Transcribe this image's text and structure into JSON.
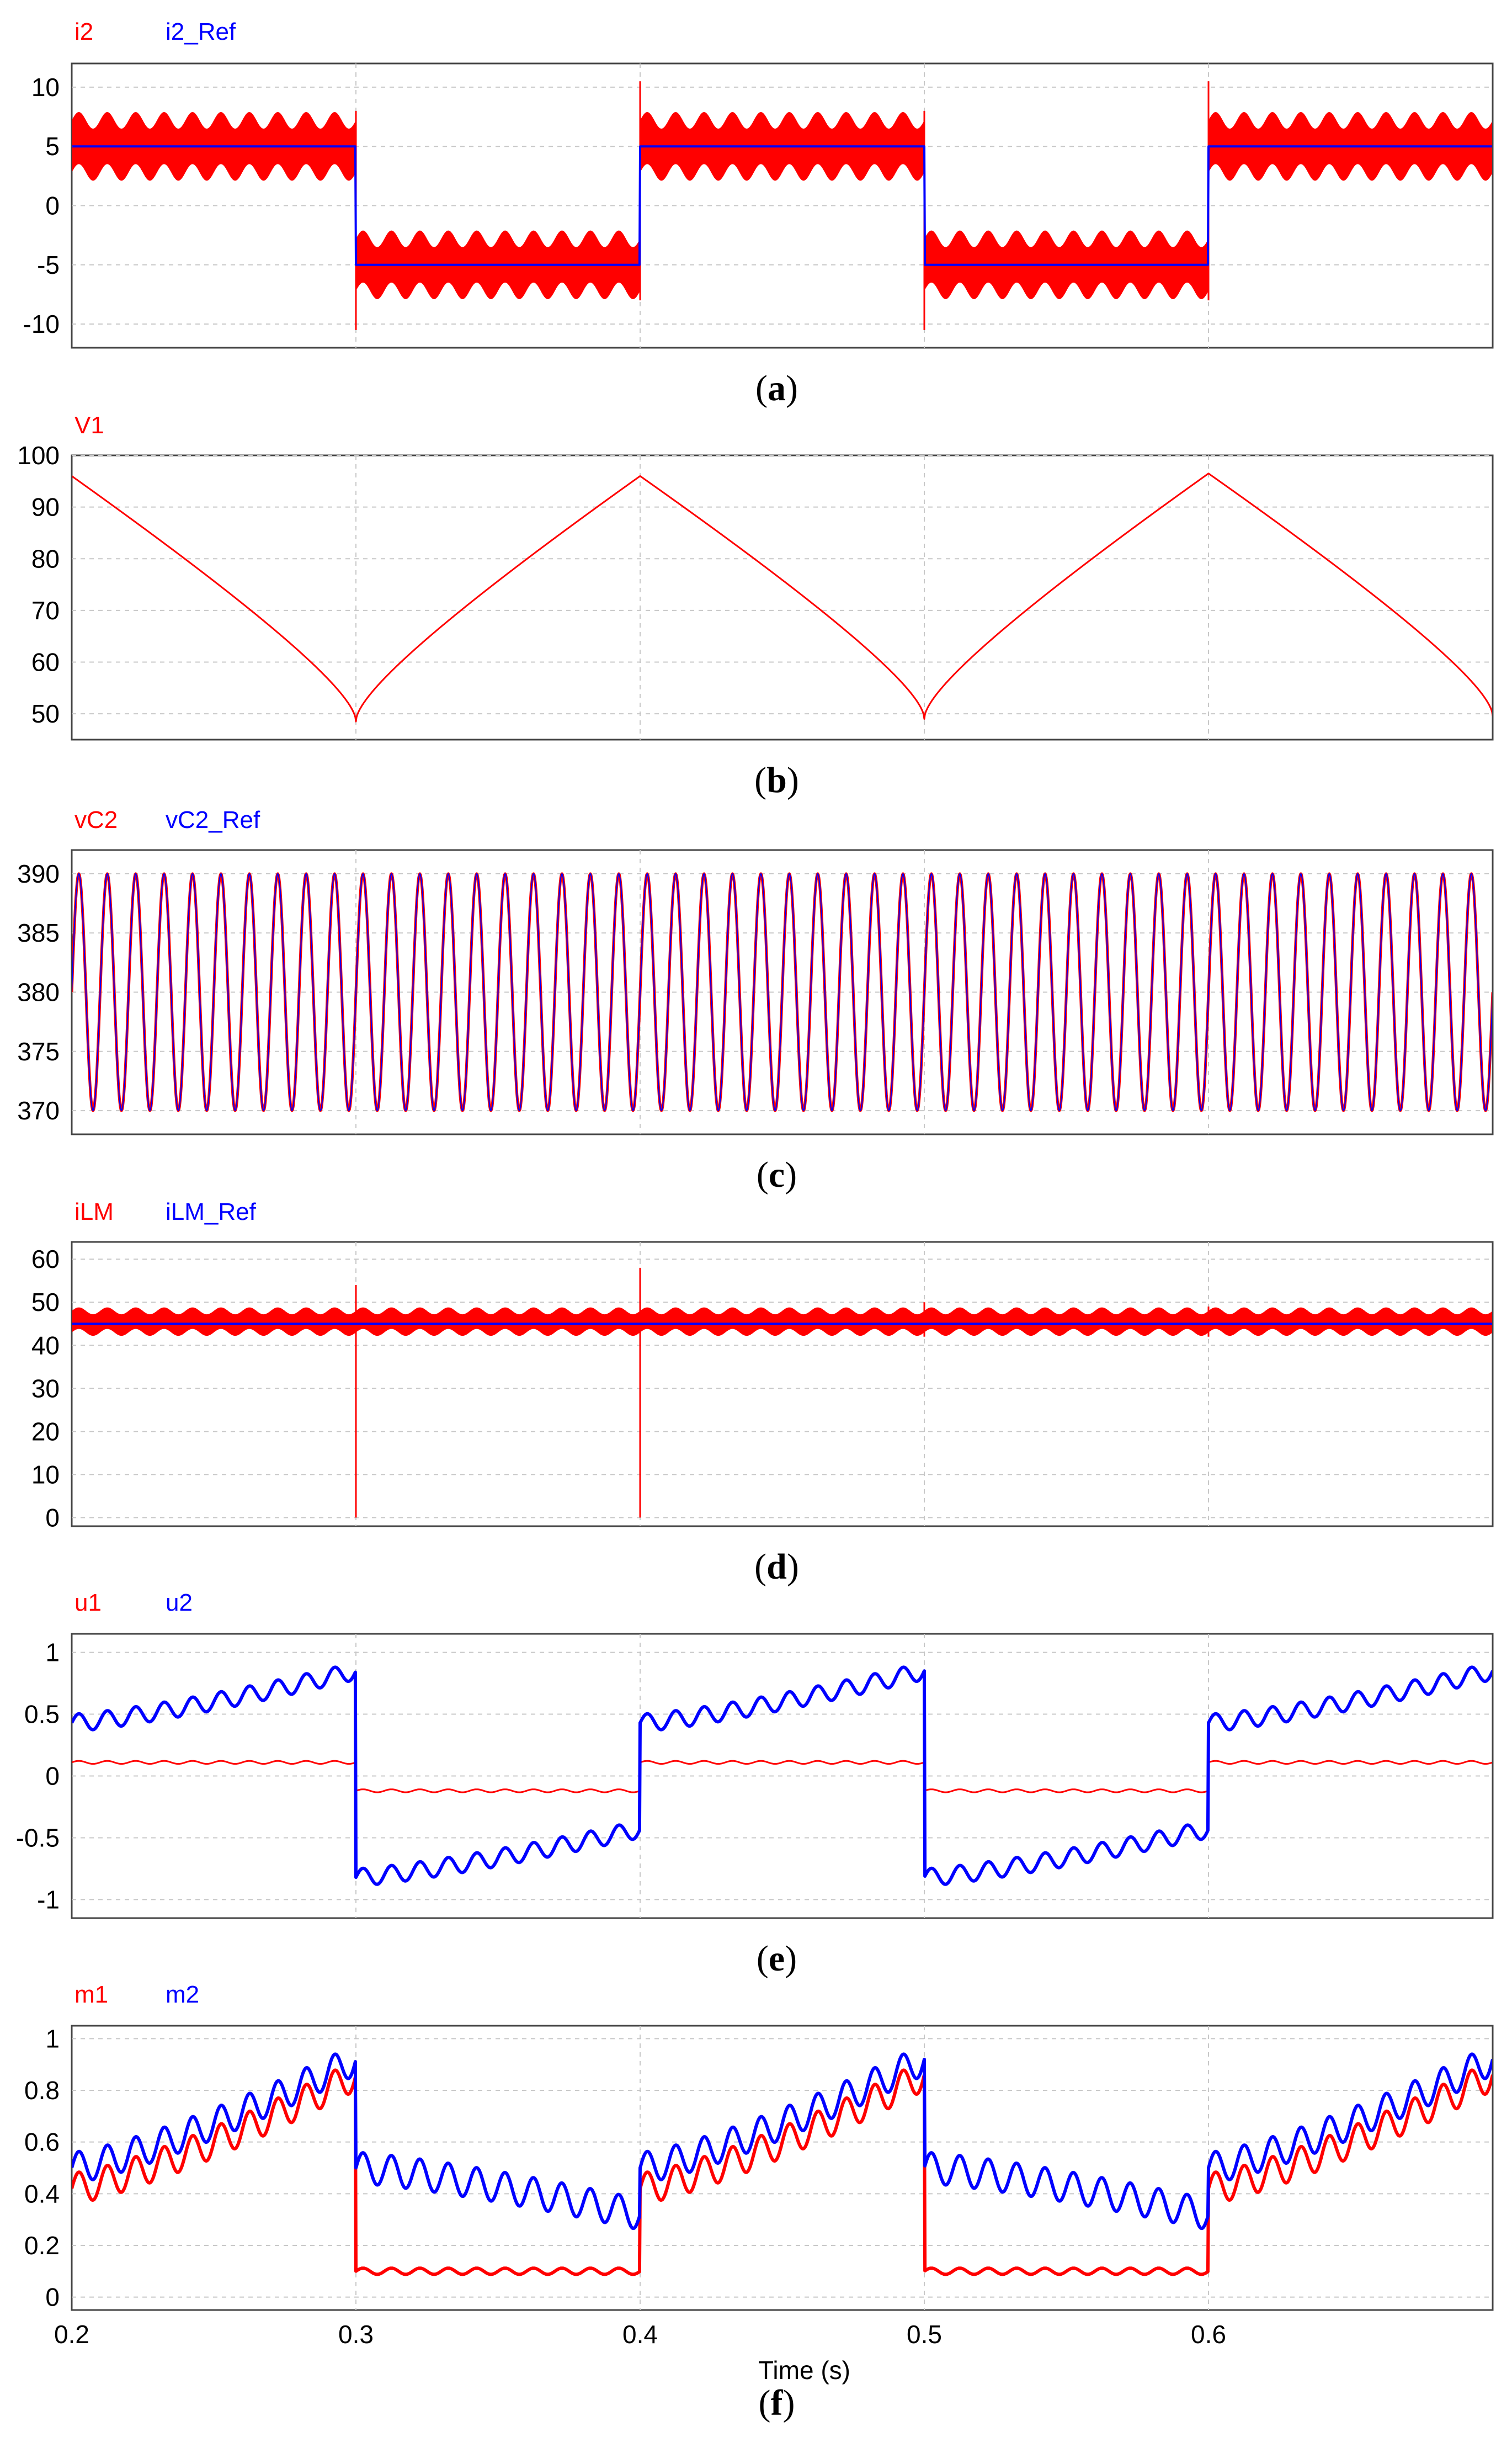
{
  "chart_data": [
    {
      "id": "a",
      "type": "line",
      "caption_letter": "a",
      "xlim": [
        0.2,
        0.7
      ],
      "ylim": [
        -12,
        12
      ],
      "yticks": [
        10,
        5,
        0,
        -5,
        -10
      ],
      "xticks": [
        0.2,
        0.3,
        0.4,
        0.5,
        0.6
      ],
      "grid": true,
      "legend_position": "top-left",
      "series": [
        {
          "name": "i2",
          "color": "#ff0000",
          "kind": "square_band",
          "levels": [
            5,
            -5
          ],
          "switch_times": [
            0.3,
            0.4,
            0.5,
            0.6
          ],
          "band_low": 2.8,
          "band_high": 7.2,
          "ripple": 0.7,
          "ripple_freq": 100
        },
        {
          "name": "i2_Ref",
          "color": "#0000ff",
          "kind": "square",
          "levels": [
            5,
            -5
          ],
          "switch_times": [
            0.3,
            0.4,
            0.5,
            0.6
          ]
        }
      ]
    },
    {
      "id": "b",
      "type": "line",
      "caption_letter": "b",
      "xlim": [
        0.2,
        0.7
      ],
      "ylim": [
        45,
        100
      ],
      "yticks": [
        100,
        90,
        80,
        70,
        60,
        50
      ],
      "xticks": [
        0.2,
        0.3,
        0.4,
        0.5,
        0.6
      ],
      "grid": true,
      "legend_position": "top-left",
      "series": [
        {
          "name": "V1",
          "color": "#ff0000",
          "kind": "sqrt_sawtooth",
          "x": [
            0.2,
            0.3,
            0.4,
            0.5,
            0.6,
            0.7
          ],
          "y": [
            96,
            48.5,
            96,
            49,
            96.5,
            49.5
          ]
        }
      ]
    },
    {
      "id": "c",
      "type": "line",
      "caption_letter": "c",
      "xlim": [
        0.2,
        0.7
      ],
      "ylim": [
        368,
        392
      ],
      "yticks": [
        390,
        385,
        380,
        375,
        370
      ],
      "xticks": [
        0.2,
        0.3,
        0.4,
        0.5,
        0.6
      ],
      "grid": true,
      "legend_position": "top-left",
      "series": [
        {
          "name": "vC2",
          "color": "#ff0000",
          "kind": "sine",
          "offset": 380,
          "amplitude": 10,
          "frequency": 100,
          "phase": 0
        },
        {
          "name": "vC2_Ref",
          "color": "#0000ff",
          "kind": "sine",
          "offset": 380,
          "amplitude": 10,
          "frequency": 100,
          "phase": 0
        }
      ]
    },
    {
      "id": "d",
      "type": "line",
      "caption_letter": "d",
      "xlim": [
        0.2,
        0.7
      ],
      "ylim": [
        -2,
        64
      ],
      "yticks": [
        60,
        50,
        40,
        30,
        20,
        10,
        0
      ],
      "xticks": [
        0.2,
        0.3,
        0.4,
        0.5,
        0.6
      ],
      "grid": true,
      "legend_position": "top-left",
      "series": [
        {
          "name": "iLM",
          "color": "#ff0000",
          "kind": "band",
          "center": 45.5,
          "band_low": 43,
          "band_high": 48,
          "ripple": 0.8,
          "ripple_freq": 100,
          "spikes": [
            {
              "x": 0.3,
              "y_low": 0,
              "y_high": 54
            },
            {
              "x": 0.4,
              "y_low": 0,
              "y_high": 58
            },
            {
              "x": 0.5,
              "y_low": 42,
              "y_high": 50
            },
            {
              "x": 0.6,
              "y_low": 42,
              "y_high": 49
            }
          ]
        },
        {
          "name": "iLM_Ref",
          "color": "#0000ff",
          "kind": "constant",
          "value": 45
        }
      ]
    },
    {
      "id": "e",
      "type": "line",
      "caption_letter": "e",
      "xlim": [
        0.2,
        0.7
      ],
      "ylim": [
        -1.15,
        1.15
      ],
      "yticks": [
        1,
        0.5,
        0,
        -0.5,
        -1
      ],
      "xticks": [
        0.2,
        0.3,
        0.4,
        0.5,
        0.6
      ],
      "grid": true,
      "legend_position": "top-left",
      "series": [
        {
          "name": "u1",
          "color": "#ff0000",
          "kind": "square_ripple",
          "switch_times": [
            0.3,
            0.4,
            0.5,
            0.6
          ],
          "segments": [
            [
              0.11,
              0.11
            ],
            [
              -0.12,
              -0.12
            ],
            [
              0.11,
              0.11
            ],
            [
              -0.12,
              -0.12
            ],
            [
              0.11,
              0.11
            ]
          ],
          "ripple": 0.012,
          "ripple_freq": 100,
          "width": 3
        },
        {
          "name": "u2",
          "color": "#0000ff",
          "kind": "square_ripple",
          "switch_times": [
            0.3,
            0.4,
            0.5,
            0.6
          ],
          "segments": [
            [
              0.43,
              0.85
            ],
            [
              -0.82,
              -0.43
            ],
            [
              0.43,
              0.85
            ],
            [
              -0.82,
              -0.43
            ],
            [
              0.43,
              0.85
            ]
          ],
          "ripple": 0.07,
          "ripple_freq": 100,
          "width": 6
        }
      ]
    },
    {
      "id": "f",
      "type": "line",
      "caption_letter": "f",
      "xlim": [
        0.2,
        0.7
      ],
      "ylim": [
        -0.05,
        1.05
      ],
      "yticks": [
        1,
        0.8,
        0.6,
        0.4,
        0.2,
        0
      ],
      "xticks": [
        0.2,
        0.3,
        0.4,
        0.5,
        0.6
      ],
      "xtick_labels": [
        "0.2",
        "0.3",
        "0.4",
        "0.5",
        "0.6"
      ],
      "xlabel": "Time (s)",
      "grid": true,
      "legend_position": "top-left",
      "series": [
        {
          "name": "m1",
          "color": "#ff0000",
          "kind": "square_ripple",
          "switch_times": [
            0.3,
            0.4,
            0.5,
            0.6
          ],
          "segments": [
            [
              0.42,
              0.86
            ],
            [
              0.1,
              0.1
            ],
            [
              0.42,
              0.86
            ],
            [
              0.1,
              0.1
            ],
            [
              0.42,
              0.86
            ]
          ],
          "ripple": 0.06,
          "ripple_freq": 100,
          "ripple_seg_scale": [
            1,
            0.2,
            1,
            0.2,
            1
          ],
          "width": 6
        },
        {
          "name": "m2",
          "color": "#0000ff",
          "kind": "square_ripple",
          "switch_times": [
            0.3,
            0.4,
            0.5,
            0.6
          ],
          "segments": [
            [
              0.5,
              0.92
            ],
            [
              0.5,
              0.32
            ],
            [
              0.5,
              0.92
            ],
            [
              0.5,
              0.32
            ],
            [
              0.5,
              0.92
            ]
          ],
          "ripple": 0.06,
          "ripple_freq": 100,
          "width": 6
        }
      ]
    }
  ]
}
